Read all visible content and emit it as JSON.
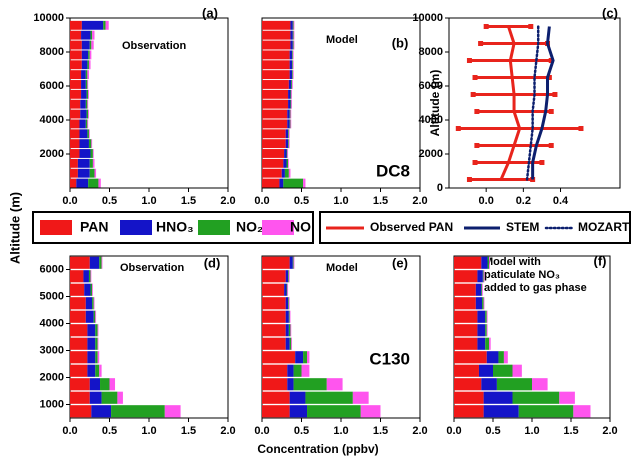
{
  "chart_data": [
    {
      "type": "bar",
      "label": "(a)",
      "annotation": [
        "Observation"
      ],
      "ylabel": "Altitude (m)",
      "y": [
        290,
        870,
        1450,
        2030,
        2610,
        3190,
        3770,
        4350,
        4930,
        5510,
        6090,
        6670,
        7250,
        7830,
        8410,
        8990,
        9570
      ],
      "xlim": [
        0,
        2
      ],
      "xticks": [
        {
          "value": 0,
          "label": "0.0"
        },
        {
          "value": 0.5,
          "label": "0.5"
        },
        {
          "value": 1,
          "label": "1.0"
        },
        {
          "value": 1.5,
          "label": "1.5"
        },
        {
          "value": 2,
          "label": "2.0"
        }
      ],
      "ylim": [
        0,
        10000
      ],
      "yticks": [
        2000,
        4000,
        6000,
        8000,
        10000
      ],
      "series": [
        {
          "name": "PAN",
          "color": "#f01818",
          "values": [
            0.08,
            0.1,
            0.1,
            0.12,
            0.12,
            0.12,
            0.12,
            0.13,
            0.13,
            0.14,
            0.14,
            0.14,
            0.15,
            0.15,
            0.15,
            0.14,
            0.15
          ]
        },
        {
          "name": "HNO₃",
          "color": "#1414c8",
          "values": [
            0.15,
            0.15,
            0.15,
            0.14,
            0.12,
            0.1,
            0.08,
            0.08,
            0.07,
            0.07,
            0.06,
            0.06,
            0.07,
            0.08,
            0.1,
            0.12,
            0.27
          ]
        },
        {
          "name": "NO₂",
          "color": "#22a022",
          "values": [
            0.13,
            0.06,
            0.04,
            0.03,
            0.03,
            0.02,
            0.02,
            0.02,
            0.02,
            0.02,
            0.02,
            0.02,
            0.02,
            0.02,
            0.02,
            0.02,
            0.03
          ]
        },
        {
          "name": "NO",
          "color": "#ff55ee",
          "values": [
            0.03,
            0.02,
            0.02,
            0.01,
            0.01,
            0.01,
            0.01,
            0.01,
            0.01,
            0.01,
            0.01,
            0.02,
            0.02,
            0.02,
            0.03,
            0.03,
            0.04
          ]
        }
      ]
    },
    {
      "type": "bar",
      "label": "(b)",
      "annotation": [
        "Model"
      ],
      "group_label": "DC8",
      "y": [
        290,
        870,
        1450,
        2030,
        2610,
        3190,
        3770,
        4350,
        4930,
        5510,
        6090,
        6670,
        7250,
        7830,
        8410,
        8990,
        9570
      ],
      "xlim": [
        0,
        2
      ],
      "xticks": [
        {
          "value": 0,
          "label": "0.0"
        },
        {
          "value": 0.5,
          "label": "0.5"
        },
        {
          "value": 1,
          "label": "1.0"
        },
        {
          "value": 1.5,
          "label": "1.5"
        },
        {
          "value": 2,
          "label": "2.0"
        }
      ],
      "ylim": [
        0,
        10000
      ],
      "series": [
        {
          "name": "PAN",
          "color": "#f01818",
          "values": [
            0.22,
            0.25,
            0.27,
            0.28,
            0.3,
            0.3,
            0.32,
            0.32,
            0.33,
            0.33,
            0.34,
            0.35,
            0.35,
            0.35,
            0.36,
            0.36,
            0.36
          ]
        },
        {
          "name": "HNO₃",
          "color": "#1414c8",
          "values": [
            0.05,
            0.04,
            0.04,
            0.03,
            0.03,
            0.03,
            0.03,
            0.03,
            0.03,
            0.03,
            0.03,
            0.03,
            0.03,
            0.03,
            0.03,
            0.03,
            0.03
          ]
        },
        {
          "name": "NO₂",
          "color": "#22a022",
          "values": [
            0.25,
            0.05,
            0.02,
            0.01,
            0.01,
            0.01,
            0.01,
            0.01,
            0.01,
            0.01,
            0.01,
            0.01,
            0.01,
            0.01,
            0.01,
            0.01,
            0.01
          ]
        },
        {
          "name": "NO",
          "color": "#ff55ee",
          "values": [
            0.03,
            0.02,
            0.01,
            0.01,
            0.01,
            0.01,
            0.01,
            0.01,
            0.01,
            0.01,
            0.01,
            0.01,
            0.01,
            0.01,
            0.01,
            0.01,
            0.01
          ]
        }
      ]
    },
    {
      "type": "line",
      "label": "(c)",
      "ylabel": "Altitude (m)",
      "y": [
        500,
        1500,
        2500,
        3500,
        4500,
        5500,
        6500,
        7500,
        8500,
        9500
      ],
      "xlim": [
        -0.2,
        0.72
      ],
      "xticks": [
        {
          "value": 0,
          "label": "0.0"
        },
        {
          "value": 0.2,
          "label": "0.2"
        },
        {
          "value": 0.4,
          "label": "0.4"
        }
      ],
      "ylim": [
        0,
        10000
      ],
      "yticks": [
        0,
        2000,
        4000,
        6000,
        8000,
        10000
      ],
      "series": [
        {
          "name": "Observed PAN",
          "color": "#e8241c",
          "linestyle": "solid",
          "values": [
            0.08,
            0.12,
            0.15,
            0.18,
            0.15,
            0.15,
            0.14,
            0.13,
            0.15,
            0.12
          ],
          "errors": [
            0.17,
            0.18,
            0.2,
            0.33,
            0.2,
            0.22,
            0.2,
            0.22,
            0.18,
            0.12
          ]
        },
        {
          "name": "STEM",
          "color": "#0c1f6e",
          "linestyle": "solid",
          "values": [
            0.25,
            0.25,
            0.27,
            0.3,
            0.32,
            0.33,
            0.33,
            0.36,
            0.33,
            0.34
          ]
        },
        {
          "name": "MOZART",
          "color": "#0c1f6e",
          "linestyle": "dotted",
          "values": [
            0.22,
            0.23,
            0.24,
            0.25,
            0.25,
            0.26,
            0.26,
            0.27,
            0.28,
            0.28
          ]
        }
      ]
    },
    {
      "type": "bar",
      "label": "(d)",
      "annotation": [
        "Observation"
      ],
      "y": [
        750,
        1250,
        1750,
        2250,
        2750,
        3250,
        3750,
        4250,
        4750,
        5250,
        5750,
        6250
      ],
      "xlim": [
        0,
        2
      ],
      "xticks": [
        {
          "value": 0,
          "label": "0.0"
        },
        {
          "value": 0.5,
          "label": "0.5"
        },
        {
          "value": 1,
          "label": "1.0"
        },
        {
          "value": 1.5,
          "label": "1.5"
        },
        {
          "value": 2,
          "label": "2.0"
        }
      ],
      "ylim": [
        500,
        6500
      ],
      "yticks": [
        1000,
        2000,
        3000,
        4000,
        5000,
        6000
      ],
      "series": [
        {
          "name": "PAN",
          "color": "#f01818",
          "values": [
            0.27,
            0.25,
            0.25,
            0.22,
            0.22,
            0.22,
            0.22,
            0.2,
            0.2,
            0.18,
            0.17,
            0.25
          ]
        },
        {
          "name": "HNO₃",
          "color": "#1414c8",
          "values": [
            0.25,
            0.15,
            0.13,
            0.1,
            0.1,
            0.1,
            0.1,
            0.1,
            0.08,
            0.08,
            0.07,
            0.12
          ]
        },
        {
          "name": "NO₂",
          "color": "#22a022",
          "values": [
            0.68,
            0.2,
            0.12,
            0.05,
            0.03,
            0.03,
            0.03,
            0.02,
            0.02,
            0.02,
            0.02,
            0.03
          ]
        },
        {
          "name": "NO",
          "color": "#ff55ee",
          "values": [
            0.2,
            0.07,
            0.07,
            0.03,
            0.02,
            0.01,
            0.01,
            0.01,
            0.01,
            0.01,
            0.01,
            0.01
          ]
        }
      ]
    },
    {
      "type": "bar",
      "label": "(e)",
      "annotation": [
        "Model"
      ],
      "group_label": "C130",
      "xlabel": "Concentration (ppbv)",
      "y": [
        750,
        1250,
        1750,
        2250,
        2750,
        3250,
        3750,
        4250,
        4750,
        5250,
        5750,
        6250
      ],
      "xlim": [
        0,
        2
      ],
      "xticks": [
        {
          "value": 0,
          "label": "0.0"
        },
        {
          "value": 0.5,
          "label": "0.5"
        },
        {
          "value": 1,
          "label": "1.0"
        },
        {
          "value": 1.5,
          "label": "1.5"
        },
        {
          "value": 2,
          "label": "2.0"
        }
      ],
      "ylim": [
        500,
        6500
      ],
      "series": [
        {
          "name": "PAN",
          "color": "#f01818",
          "values": [
            0.35,
            0.35,
            0.32,
            0.32,
            0.42,
            0.3,
            0.3,
            0.3,
            0.3,
            0.28,
            0.3,
            0.35
          ]
        },
        {
          "name": "HNO₃",
          "color": "#1414c8",
          "values": [
            0.22,
            0.2,
            0.08,
            0.08,
            0.1,
            0.05,
            0.04,
            0.04,
            0.03,
            0.03,
            0.03,
            0.04
          ]
        },
        {
          "name": "NO₂",
          "color": "#22a022",
          "values": [
            0.68,
            0.6,
            0.42,
            0.1,
            0.05,
            0.02,
            0.02,
            0.01,
            0.01,
            0.01,
            0.01,
            0.01
          ]
        },
        {
          "name": "NO",
          "color": "#ff55ee",
          "values": [
            0.25,
            0.2,
            0.2,
            0.1,
            0.03,
            0.01,
            0.01,
            0.01,
            0.01,
            0.01,
            0.01,
            0.01
          ]
        }
      ]
    },
    {
      "type": "bar",
      "label": "(f)",
      "annotation": [
        "Model with",
        "paticulate NO₃",
        "added to gas phase"
      ],
      "y": [
        750,
        1250,
        1750,
        2250,
        2750,
        3250,
        3750,
        4250,
        4750,
        5250,
        5750,
        6250
      ],
      "xlim": [
        0,
        2
      ],
      "xticks": [
        {
          "value": 0,
          "label": "0.0"
        },
        {
          "value": 0.5,
          "label": "0.5"
        },
        {
          "value": 1,
          "label": "1.0"
        },
        {
          "value": 1.5,
          "label": "1.5"
        },
        {
          "value": 2,
          "label": "2.0"
        }
      ],
      "ylim": [
        500,
        6500
      ],
      "series": [
        {
          "name": "PAN",
          "color": "#f01818",
          "values": [
            0.38,
            0.38,
            0.35,
            0.32,
            0.42,
            0.3,
            0.3,
            0.3,
            0.28,
            0.28,
            0.3,
            0.35
          ]
        },
        {
          "name": "HNO₃",
          "color": "#1414c8",
          "values": [
            0.45,
            0.37,
            0.2,
            0.18,
            0.15,
            0.1,
            0.1,
            0.1,
            0.08,
            0.07,
            0.07,
            0.08
          ]
        },
        {
          "name": "NO₂",
          "color": "#22a022",
          "values": [
            0.7,
            0.6,
            0.45,
            0.25,
            0.07,
            0.05,
            0.02,
            0.02,
            0.02,
            0.01,
            0.01,
            0.02
          ]
        },
        {
          "name": "NO",
          "color": "#ff55ee",
          "values": [
            0.22,
            0.2,
            0.2,
            0.12,
            0.05,
            0.02,
            0.01,
            0.01,
            0.01,
            0.01,
            0.01,
            0.01
          ]
        }
      ]
    }
  ]
}
